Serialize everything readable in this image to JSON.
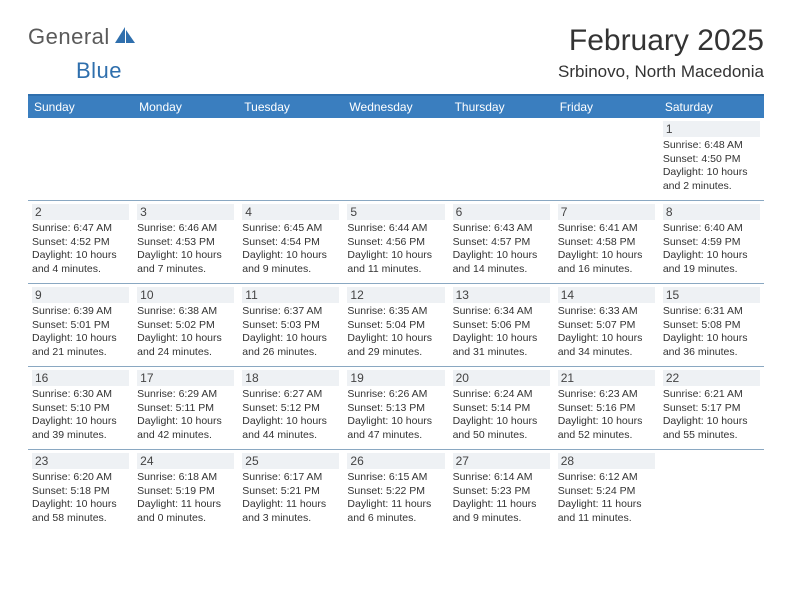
{
  "logo": {
    "main": "General",
    "sub": "Blue"
  },
  "title": "February 2025",
  "location": "Srbinovo, North Macedonia",
  "colors": {
    "accent": "#3a7ebf",
    "accent_border": "#2f6fad",
    "row_border": "#8aa8c2",
    "daynum_bg": "#eef1f4",
    "text": "#333333",
    "logo_gray": "#5a5a5a"
  },
  "day_names": [
    "Sunday",
    "Monday",
    "Tuesday",
    "Wednesday",
    "Thursday",
    "Friday",
    "Saturday"
  ],
  "weeks": [
    [
      {
        "empty": true
      },
      {
        "empty": true
      },
      {
        "empty": true
      },
      {
        "empty": true
      },
      {
        "empty": true
      },
      {
        "empty": true
      },
      {
        "n": "1",
        "sunrise": "Sunrise: 6:48 AM",
        "sunset": "Sunset: 4:50 PM",
        "daylight": "Daylight: 10 hours and 2 minutes."
      }
    ],
    [
      {
        "n": "2",
        "sunrise": "Sunrise: 6:47 AM",
        "sunset": "Sunset: 4:52 PM",
        "daylight": "Daylight: 10 hours and 4 minutes."
      },
      {
        "n": "3",
        "sunrise": "Sunrise: 6:46 AM",
        "sunset": "Sunset: 4:53 PM",
        "daylight": "Daylight: 10 hours and 7 minutes."
      },
      {
        "n": "4",
        "sunrise": "Sunrise: 6:45 AM",
        "sunset": "Sunset: 4:54 PM",
        "daylight": "Daylight: 10 hours and 9 minutes."
      },
      {
        "n": "5",
        "sunrise": "Sunrise: 6:44 AM",
        "sunset": "Sunset: 4:56 PM",
        "daylight": "Daylight: 10 hours and 11 minutes."
      },
      {
        "n": "6",
        "sunrise": "Sunrise: 6:43 AM",
        "sunset": "Sunset: 4:57 PM",
        "daylight": "Daylight: 10 hours and 14 minutes."
      },
      {
        "n": "7",
        "sunrise": "Sunrise: 6:41 AM",
        "sunset": "Sunset: 4:58 PM",
        "daylight": "Daylight: 10 hours and 16 minutes."
      },
      {
        "n": "8",
        "sunrise": "Sunrise: 6:40 AM",
        "sunset": "Sunset: 4:59 PM",
        "daylight": "Daylight: 10 hours and 19 minutes."
      }
    ],
    [
      {
        "n": "9",
        "sunrise": "Sunrise: 6:39 AM",
        "sunset": "Sunset: 5:01 PM",
        "daylight": "Daylight: 10 hours and 21 minutes."
      },
      {
        "n": "10",
        "sunrise": "Sunrise: 6:38 AM",
        "sunset": "Sunset: 5:02 PM",
        "daylight": "Daylight: 10 hours and 24 minutes."
      },
      {
        "n": "11",
        "sunrise": "Sunrise: 6:37 AM",
        "sunset": "Sunset: 5:03 PM",
        "daylight": "Daylight: 10 hours and 26 minutes."
      },
      {
        "n": "12",
        "sunrise": "Sunrise: 6:35 AM",
        "sunset": "Sunset: 5:04 PM",
        "daylight": "Daylight: 10 hours and 29 minutes."
      },
      {
        "n": "13",
        "sunrise": "Sunrise: 6:34 AM",
        "sunset": "Sunset: 5:06 PM",
        "daylight": "Daylight: 10 hours and 31 minutes."
      },
      {
        "n": "14",
        "sunrise": "Sunrise: 6:33 AM",
        "sunset": "Sunset: 5:07 PM",
        "daylight": "Daylight: 10 hours and 34 minutes."
      },
      {
        "n": "15",
        "sunrise": "Sunrise: 6:31 AM",
        "sunset": "Sunset: 5:08 PM",
        "daylight": "Daylight: 10 hours and 36 minutes."
      }
    ],
    [
      {
        "n": "16",
        "sunrise": "Sunrise: 6:30 AM",
        "sunset": "Sunset: 5:10 PM",
        "daylight": "Daylight: 10 hours and 39 minutes."
      },
      {
        "n": "17",
        "sunrise": "Sunrise: 6:29 AM",
        "sunset": "Sunset: 5:11 PM",
        "daylight": "Daylight: 10 hours and 42 minutes."
      },
      {
        "n": "18",
        "sunrise": "Sunrise: 6:27 AM",
        "sunset": "Sunset: 5:12 PM",
        "daylight": "Daylight: 10 hours and 44 minutes."
      },
      {
        "n": "19",
        "sunrise": "Sunrise: 6:26 AM",
        "sunset": "Sunset: 5:13 PM",
        "daylight": "Daylight: 10 hours and 47 minutes."
      },
      {
        "n": "20",
        "sunrise": "Sunrise: 6:24 AM",
        "sunset": "Sunset: 5:14 PM",
        "daylight": "Daylight: 10 hours and 50 minutes."
      },
      {
        "n": "21",
        "sunrise": "Sunrise: 6:23 AM",
        "sunset": "Sunset: 5:16 PM",
        "daylight": "Daylight: 10 hours and 52 minutes."
      },
      {
        "n": "22",
        "sunrise": "Sunrise: 6:21 AM",
        "sunset": "Sunset: 5:17 PM",
        "daylight": "Daylight: 10 hours and 55 minutes."
      }
    ],
    [
      {
        "n": "23",
        "sunrise": "Sunrise: 6:20 AM",
        "sunset": "Sunset: 5:18 PM",
        "daylight": "Daylight: 10 hours and 58 minutes."
      },
      {
        "n": "24",
        "sunrise": "Sunrise: 6:18 AM",
        "sunset": "Sunset: 5:19 PM",
        "daylight": "Daylight: 11 hours and 0 minutes."
      },
      {
        "n": "25",
        "sunrise": "Sunrise: 6:17 AM",
        "sunset": "Sunset: 5:21 PM",
        "daylight": "Daylight: 11 hours and 3 minutes."
      },
      {
        "n": "26",
        "sunrise": "Sunrise: 6:15 AM",
        "sunset": "Sunset: 5:22 PM",
        "daylight": "Daylight: 11 hours and 6 minutes."
      },
      {
        "n": "27",
        "sunrise": "Sunrise: 6:14 AM",
        "sunset": "Sunset: 5:23 PM",
        "daylight": "Daylight: 11 hours and 9 minutes."
      },
      {
        "n": "28",
        "sunrise": "Sunrise: 6:12 AM",
        "sunset": "Sunset: 5:24 PM",
        "daylight": "Daylight: 11 hours and 11 minutes."
      },
      {
        "empty": true
      }
    ]
  ]
}
